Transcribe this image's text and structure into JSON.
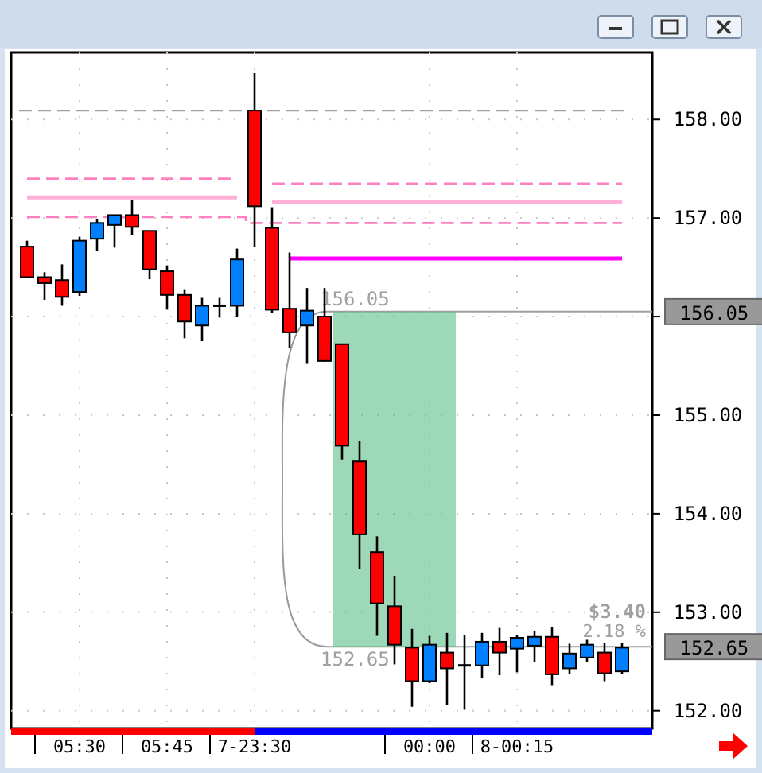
{
  "chart_data": {
    "type": "candlestick",
    "categories": [
      null,
      null,
      null,
      "05:30",
      null,
      null,
      null,
      null,
      "05:45",
      null,
      null,
      null,
      null,
      "7-23:30",
      null,
      null,
      null,
      null,
      null,
      null,
      null,
      null,
      null,
      "00:00",
      null,
      null,
      null,
      null,
      "8-00:15",
      null,
      null,
      null,
      null,
      null,
      null
    ],
    "ohlc": [
      [
        156.71,
        156.77,
        156.4,
        156.4
      ],
      [
        156.4,
        156.45,
        156.17,
        156.34
      ],
      [
        156.37,
        156.53,
        156.11,
        156.2
      ],
      [
        156.25,
        156.81,
        156.21,
        156.77
      ],
      [
        156.79,
        156.99,
        156.67,
        156.95
      ],
      [
        156.93,
        157.03,
        156.7,
        157.03
      ],
      [
        157.03,
        157.18,
        156.83,
        156.91
      ],
      [
        156.87,
        156.87,
        156.38,
        156.48
      ],
      [
        156.46,
        156.52,
        156.07,
        156.22
      ],
      [
        156.22,
        156.27,
        155.78,
        155.95
      ],
      [
        155.91,
        156.19,
        155.75,
        156.11
      ],
      [
        156.11,
        156.19,
        155.99,
        156.11
      ],
      [
        156.11,
        156.69,
        156.0,
        156.58
      ],
      [
        158.09,
        158.47,
        156.71,
        157.12
      ],
      [
        156.9,
        157.11,
        156.04,
        156.07
      ],
      [
        156.08,
        156.65,
        155.68,
        155.84
      ],
      [
        155.91,
        156.29,
        155.52,
        156.06
      ],
      [
        156.0,
        156.29,
        155.54,
        155.55
      ],
      [
        155.72,
        155.72,
        154.55,
        154.69
      ],
      [
        154.53,
        154.74,
        153.44,
        153.79
      ],
      [
        153.61,
        153.77,
        152.76,
        153.09
      ],
      [
        153.06,
        153.37,
        152.47,
        152.67
      ],
      [
        152.64,
        152.83,
        152.04,
        152.3
      ],
      [
        152.3,
        152.76,
        152.28,
        152.67
      ],
      [
        152.59,
        152.79,
        152.06,
        152.43
      ],
      [
        152.46,
        152.77,
        152.01,
        152.46
      ],
      [
        152.46,
        152.79,
        152.33,
        152.7
      ],
      [
        152.7,
        152.84,
        152.36,
        152.59
      ],
      [
        152.63,
        152.77,
        152.39,
        152.74
      ],
      [
        152.66,
        152.81,
        152.49,
        152.75
      ],
      [
        152.75,
        152.85,
        152.26,
        152.37
      ],
      [
        152.43,
        152.68,
        152.37,
        152.58
      ],
      [
        152.54,
        152.72,
        152.49,
        152.67
      ],
      [
        152.59,
        152.69,
        152.3,
        152.38
      ],
      [
        152.4,
        152.69,
        152.37,
        152.64
      ]
    ],
    "colors": [
      "#ff0000",
      "#ff0000",
      "#ff0000",
      "#0080ff",
      "#0080ff",
      "#0080ff",
      "#ff0000",
      "#ff0000",
      "#ff0000",
      "#ff0000",
      "#0080ff",
      "#000000",
      "#0080ff",
      "#ff0000",
      "#ff0000",
      "#ff0000",
      "#0080ff",
      "#ff0000",
      "#ff0000",
      "#ff0000",
      "#ff0000",
      "#ff0000",
      "#ff0000",
      "#0080ff",
      "#ff0000",
      "#000000",
      "#0080ff",
      "#ff0000",
      "#0080ff",
      "#0080ff",
      "#ff0000",
      "#0080ff",
      "#0080ff",
      "#ff0000",
      "#0080ff"
    ],
    "series": [
      {
        "type": "line",
        "color": "#ff80c0",
        "line_style": "dashed",
        "values": [
          157.4,
          157.4,
          157.4,
          157.4,
          157.4,
          157.4,
          157.4,
          157.4,
          157.4,
          157.4,
          157.4,
          157.4,
          157.4,
          null,
          157.35,
          157.35,
          157.35,
          157.35,
          157.35,
          157.35,
          157.35,
          157.35,
          157.35,
          157.35,
          157.35,
          157.35,
          157.35,
          157.35,
          157.35,
          157.35,
          157.35,
          157.35,
          157.35,
          157.35,
          157.35
        ]
      },
      {
        "type": "line",
        "color": "#ffb0d8",
        "line_style": "solid",
        "values": [
          157.21,
          157.21,
          157.21,
          157.21,
          157.21,
          157.21,
          157.21,
          157.21,
          157.21,
          157.21,
          157.21,
          157.21,
          157.21,
          null,
          157.16,
          157.16,
          157.16,
          157.16,
          157.16,
          157.16,
          157.16,
          157.16,
          157.16,
          157.16,
          157.16,
          157.16,
          157.16,
          157.16,
          157.16,
          157.16,
          157.16,
          157.16,
          157.16,
          157.16,
          157.16
        ]
      },
      {
        "type": "line",
        "color": "#ff80c0",
        "line_style": "dashed",
        "values": [
          157.01,
          157.01,
          157.01,
          157.01,
          157.01,
          157.01,
          157.01,
          157.01,
          157.01,
          157.01,
          157.01,
          157.01,
          157.01,
          156.95,
          156.95,
          156.95,
          156.95,
          156.95,
          156.95,
          156.95,
          156.95,
          156.95,
          156.95,
          156.95,
          156.95,
          156.95,
          156.95,
          156.95,
          156.95,
          156.95,
          156.95,
          156.95,
          156.95,
          156.95,
          156.95
        ]
      },
      {
        "type": "line",
        "color": "#ff00ff",
        "line_style": "solid",
        "values": [
          null,
          null,
          null,
          null,
          null,
          null,
          null,
          null,
          null,
          null,
          null,
          null,
          null,
          null,
          null,
          156.59,
          156.59,
          156.59,
          156.59,
          156.59,
          156.59,
          156.59,
          156.59,
          156.59,
          156.59,
          156.59,
          156.59,
          156.59,
          156.59,
          156.59,
          156.59,
          156.59,
          156.59,
          156.59,
          156.59
        ]
      }
    ],
    "ylim": [
      151.82,
      158.68
    ],
    "yticks": [
      {
        "value": 152,
        "label": "152.00"
      },
      {
        "value": 153,
        "label": "153.00"
      },
      {
        "value": 154,
        "label": "154.00"
      },
      {
        "value": 155,
        "label": "155.00"
      },
      {
        "value": 156,
        "label": null
      },
      {
        "value": 157,
        "label": "157.00"
      },
      {
        "value": 158,
        "label": "158.00"
      }
    ],
    "grid": true,
    "ref_lines": [
      {
        "axis": "y",
        "value": 158.09,
        "color": "#a0a0a0",
        "line_style": "dashed"
      },
      {
        "axis": "y",
        "value": 156.05,
        "label": "156.05",
        "color": "#a0a0a0",
        "line_style": "solid"
      },
      {
        "axis": "y",
        "value": 152.65,
        "label": "152.65",
        "color": "#a0a0a0",
        "line_style": "solid"
      }
    ],
    "bands": [
      {
        "axis": "y",
        "from": 152.65,
        "to": 156.05,
        "color": "#5cc08a"
      }
    ],
    "annotations": [
      "$3.40",
      "2.18 %"
    ]
  }
}
